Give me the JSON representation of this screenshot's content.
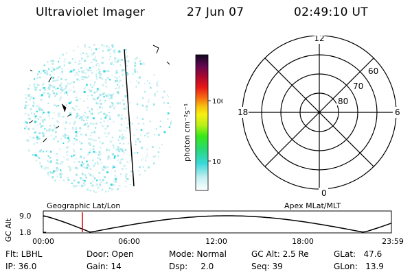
{
  "header": {
    "title": "Ultraviolet Imager",
    "date": "27 Jun 07",
    "time": "02:49:10 UT"
  },
  "colorbar": {
    "label": "photon cm⁻²s⁻¹",
    "ticks": [
      "100",
      "10"
    ]
  },
  "polar": {
    "lat_labels": [
      "60",
      "70",
      "80"
    ],
    "mlt_labels": [
      "12",
      "18",
      "6",
      "0"
    ]
  },
  "orbit": {
    "left_title": "Geographic Lat/Lon",
    "right_title": "Apex MLat/MLT",
    "axis_label": "GC Alt",
    "y_ticks": [
      "9.0",
      "1.8"
    ],
    "x_ticks": [
      "00:00",
      "06:00",
      "12:00",
      "18:00",
      "23:59"
    ]
  },
  "info": {
    "flt": "Flt: LBHL",
    "ip": "IP: 36.0",
    "door": "Door: Open",
    "gain": "Gain: 14",
    "mode": "Mode: Normal",
    "dsp": "Dsp:     2.0",
    "gcalt": "GC Alt: 2.5 Re",
    "seq": "Seq: 39",
    "glat": "GLat:   47.6",
    "glon": "GLon:   13.9"
  },
  "colors": {
    "speckle": "#7fe0e6",
    "terminator": "#000000",
    "cursor": "#d00000"
  }
}
